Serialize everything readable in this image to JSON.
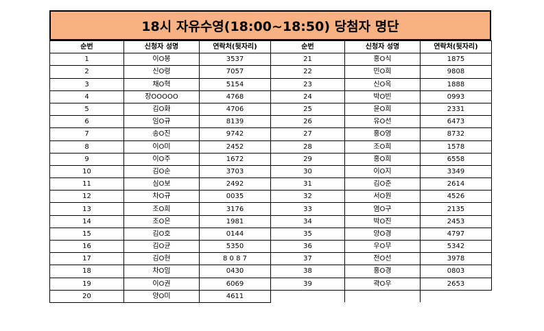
{
  "title": "18시 자유수영(18:00~18:50) 당첨자 명단",
  "headers": [
    "순번",
    "신청자 성명",
    "연락처(뒷자리)",
    "순번",
    "신청자 성명",
    "연락처(뒷자리)"
  ],
  "rows": [
    [
      "1",
      "이O봉",
      "3537",
      "21",
      "홍O식",
      "1875"
    ],
    [
      "2",
      "신O령",
      "7057",
      "22",
      "민O희",
      "9808"
    ],
    [
      "3",
      "채O혁",
      "5154",
      "23",
      "신O옥",
      "1888"
    ],
    [
      "4",
      "장OOOOO",
      "4768",
      "24",
      "박O빈",
      "0993"
    ],
    [
      "5",
      "김O화",
      "4706",
      "25",
      "윤O희",
      "2331"
    ],
    [
      "6",
      "임O규",
      "8139",
      "26",
      "유O선",
      "6473"
    ],
    [
      "7",
      "송O진",
      "9742",
      "27",
      "홍O영",
      "8732"
    ],
    [
      "8",
      "이O미",
      "2452",
      "28",
      "조O희",
      "1578"
    ],
    [
      "9",
      "이O주",
      "1672",
      "29",
      "홍O희",
      "6558"
    ],
    [
      "10",
      "김O순",
      "3703",
      "30",
      "이O지",
      "3349"
    ],
    [
      "11",
      "심O보",
      "2492",
      "31",
      "김O준",
      "2614"
    ],
    [
      "12",
      "차O규",
      "0035",
      "32",
      "서O원",
      "4526"
    ],
    [
      "13",
      "조O희",
      "3176",
      "33",
      "염O구",
      "2135"
    ],
    [
      "14",
      "조O은",
      "1981",
      "34",
      "박O진",
      "2453"
    ],
    [
      "15",
      "김O호",
      "0144",
      "35",
      "양O경",
      "4797"
    ],
    [
      "16",
      "김O균",
      "5350",
      "36",
      "우O무",
      "5342"
    ],
    [
      "17",
      "김O현",
      "8 0 8 7",
      "37",
      "전O선",
      "3978"
    ],
    [
      "18",
      "차O임",
      "0430",
      "38",
      "홍O경",
      "0803"
    ],
    [
      "19",
      "이O권",
      "6069",
      "39",
      "곽O우",
      "2653"
    ],
    [
      "20",
      "양O미",
      "4611",
      "",
      "",
      ""
    ]
  ]
}
